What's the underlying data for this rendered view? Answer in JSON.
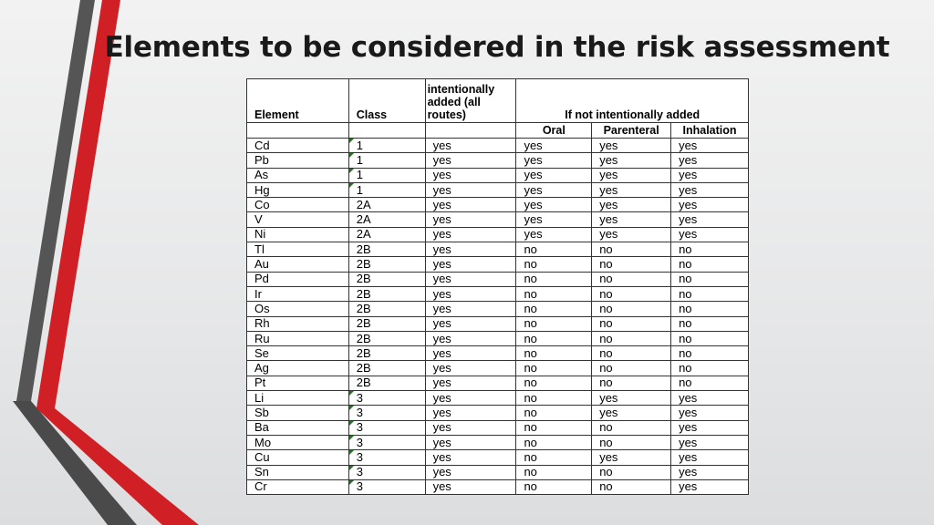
{
  "slide": {
    "title": "Elements to be considered in the risk assessment"
  },
  "colors": {
    "accent_red": "#d01f25",
    "dark_gray": "#555555",
    "table_border": "#333333",
    "class_marker_green": "#1e7a1e"
  },
  "table": {
    "headers": {
      "element": "Element",
      "class": "Class",
      "intentionally_added": "intentionally added (all routes)",
      "if_not_intentionally_added": "If not intentionally added",
      "oral": "Oral",
      "parenteral": "Parenteral",
      "inhalation": "Inhalation"
    },
    "rows": [
      {
        "element": "Cd",
        "class": "1",
        "marked": true,
        "added": "yes",
        "oral": "yes",
        "parenteral": "yes",
        "inhalation": "yes"
      },
      {
        "element": "Pb",
        "class": "1",
        "marked": true,
        "added": "yes",
        "oral": "yes",
        "parenteral": "yes",
        "inhalation": "yes"
      },
      {
        "element": "As",
        "class": "1",
        "marked": true,
        "added": "yes",
        "oral": "yes",
        "parenteral": "yes",
        "inhalation": "yes"
      },
      {
        "element": "Hg",
        "class": "1",
        "marked": true,
        "added": "yes",
        "oral": "yes",
        "parenteral": "yes",
        "inhalation": "yes"
      },
      {
        "element": "Co",
        "class": "2A",
        "marked": false,
        "added": "yes",
        "oral": "yes",
        "parenteral": "yes",
        "inhalation": "yes"
      },
      {
        "element": "V",
        "class": "2A",
        "marked": false,
        "added": "yes",
        "oral": "yes",
        "parenteral": "yes",
        "inhalation": "yes"
      },
      {
        "element": "Ni",
        "class": "2A",
        "marked": false,
        "added": "yes",
        "oral": "yes",
        "parenteral": "yes",
        "inhalation": "yes"
      },
      {
        "element": "Tl",
        "class": "2B",
        "marked": false,
        "added": "yes",
        "oral": "no",
        "parenteral": "no",
        "inhalation": "no"
      },
      {
        "element": "Au",
        "class": "2B",
        "marked": false,
        "added": "yes",
        "oral": "no",
        "parenteral": "no",
        "inhalation": "no"
      },
      {
        "element": "Pd",
        "class": "2B",
        "marked": false,
        "added": "yes",
        "oral": "no",
        "parenteral": "no",
        "inhalation": "no"
      },
      {
        "element": "Ir",
        "class": "2B",
        "marked": false,
        "added": "yes",
        "oral": "no",
        "parenteral": "no",
        "inhalation": "no"
      },
      {
        "element": "Os",
        "class": "2B",
        "marked": false,
        "added": "yes",
        "oral": "no",
        "parenteral": "no",
        "inhalation": "no"
      },
      {
        "element": "Rh",
        "class": "2B",
        "marked": false,
        "added": "yes",
        "oral": "no",
        "parenteral": "no",
        "inhalation": "no"
      },
      {
        "element": "Ru",
        "class": "2B",
        "marked": false,
        "added": "yes",
        "oral": "no",
        "parenteral": "no",
        "inhalation": "no"
      },
      {
        "element": "Se",
        "class": "2B",
        "marked": false,
        "added": "yes",
        "oral": "no",
        "parenteral": "no",
        "inhalation": "no"
      },
      {
        "element": "Ag",
        "class": "2B",
        "marked": false,
        "added": "yes",
        "oral": "no",
        "parenteral": "no",
        "inhalation": "no"
      },
      {
        "element": "Pt",
        "class": "2B",
        "marked": false,
        "added": "yes",
        "oral": "no",
        "parenteral": "no",
        "inhalation": "no"
      },
      {
        "element": "Li",
        "class": "3",
        "marked": true,
        "added": "yes",
        "oral": "no",
        "parenteral": "yes",
        "inhalation": "yes"
      },
      {
        "element": "Sb",
        "class": "3",
        "marked": true,
        "added": "yes",
        "oral": "no",
        "parenteral": "yes",
        "inhalation": "yes"
      },
      {
        "element": "Ba",
        "class": "3",
        "marked": true,
        "added": "yes",
        "oral": "no",
        "parenteral": "no",
        "inhalation": "yes"
      },
      {
        "element": "Mo",
        "class": "3",
        "marked": true,
        "added": "yes",
        "oral": "no",
        "parenteral": "no",
        "inhalation": "yes"
      },
      {
        "element": "Cu",
        "class": "3",
        "marked": true,
        "added": "yes",
        "oral": "no",
        "parenteral": "yes",
        "inhalation": "yes"
      },
      {
        "element": "Sn",
        "class": "3",
        "marked": true,
        "added": "yes",
        "oral": "no",
        "parenteral": "no",
        "inhalation": "yes"
      },
      {
        "element": "Cr",
        "class": "3",
        "marked": true,
        "added": "yes",
        "oral": "no",
        "parenteral": "no",
        "inhalation": "yes"
      }
    ]
  }
}
